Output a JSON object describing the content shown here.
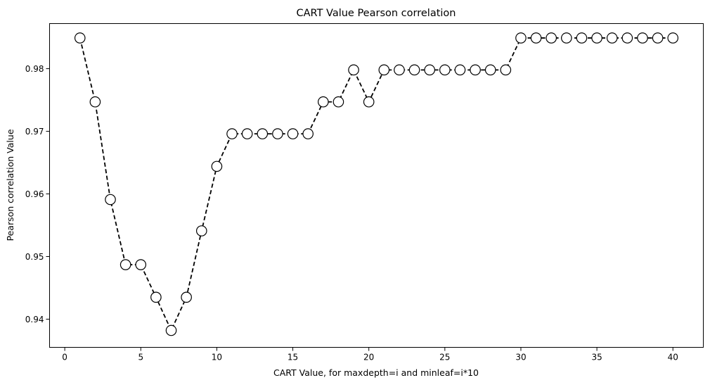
{
  "chart_data": {
    "type": "line",
    "title": "CART Value Pearson correlation",
    "xlabel": "CART Value, for maxdepth=i and minleaf=i*10",
    "ylabel": "Pearson correlation Value",
    "xlim": [
      -1,
      42
    ],
    "ylim": [
      0.9355,
      0.9872
    ],
    "xticks": [
      0,
      5,
      10,
      15,
      20,
      25,
      30,
      35,
      40
    ],
    "yticks": [
      0.94,
      0.95,
      0.96,
      0.97,
      0.98
    ],
    "xtick_labels": [
      "0",
      "5",
      "10",
      "15",
      "20",
      "25",
      "30",
      "35",
      "40"
    ],
    "ytick_labels": [
      "0.94",
      "0.95",
      "0.96",
      "0.97",
      "0.98"
    ],
    "grid": false,
    "line_style": "dashed",
    "line_color": "#000000",
    "marker": "circle",
    "marker_face": "#ffffff",
    "marker_edge": "#000000",
    "series": [
      {
        "x": [
          1,
          2,
          3,
          4,
          5,
          6,
          7,
          8,
          9,
          10,
          11,
          12,
          13,
          14,
          15,
          16,
          17,
          18,
          19,
          20,
          21,
          22,
          23,
          24,
          25,
          26,
          27,
          28,
          29,
          30,
          31,
          32,
          33,
          34,
          35,
          36,
          37,
          38,
          39,
          40
        ],
        "values": [
          0.9849,
          0.9747,
          0.9591,
          0.9487,
          0.9487,
          0.9435,
          0.9382,
          0.9435,
          0.9541,
          0.9644,
          0.9696,
          0.9696,
          0.9696,
          0.9696,
          0.9696,
          0.9696,
          0.9747,
          0.9747,
          0.9798,
          0.9747,
          0.9798,
          0.9798,
          0.9798,
          0.9798,
          0.9798,
          0.9798,
          0.9798,
          0.9798,
          0.9798,
          0.9849,
          0.9849,
          0.9849,
          0.9849,
          0.9849,
          0.9849,
          0.9849,
          0.9849,
          0.9849,
          0.9849,
          0.9849
        ]
      }
    ]
  }
}
